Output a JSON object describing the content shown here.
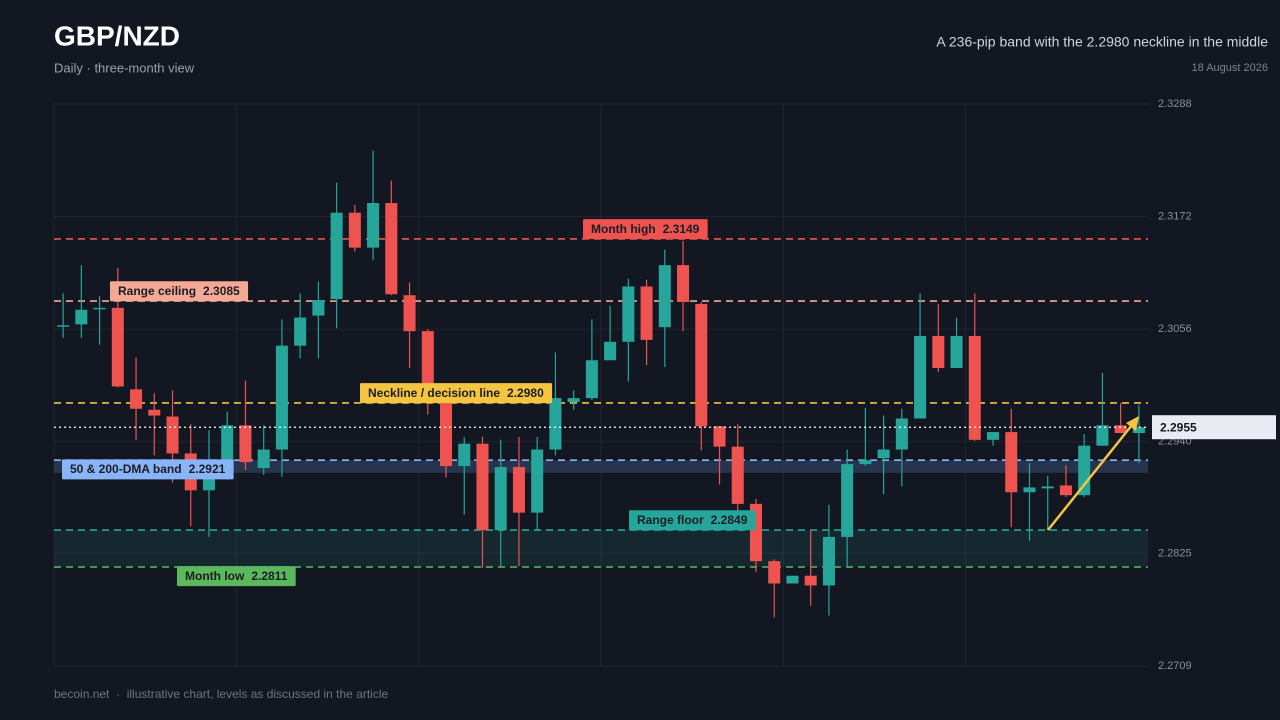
{
  "chart_data": {
    "type": "candlestick",
    "title": "GBP/NZD",
    "subtitle": "Daily · three-month view",
    "annotation": "A 236-pip band with the 2.2980 neckline in the middle",
    "date": "18 August 2026",
    "source": "becoin.net  ·  illustrative chart, levels as discussed in the article",
    "up_color": "#26a69a",
    "down_color": "#ef5350",
    "open": [
      2.3059,
      2.3061,
      2.3077,
      2.3078,
      2.2994,
      2.2973,
      2.2966,
      2.2928,
      2.289,
      2.2919,
      2.2957,
      2.2913,
      2.2932,
      2.3039,
      2.307,
      2.3087,
      2.3176,
      2.314,
      2.3186,
      2.3091,
      2.3054,
      2.2985,
      2.2915,
      2.2938,
      2.2849,
      2.2914,
      2.2867,
      2.2932,
      2.2981,
      2.2985,
      2.3024,
      2.3043,
      2.31,
      2.3058,
      2.3122,
      2.3082,
      2.2956,
      2.2935,
      2.2876,
      2.2817,
      2.2794,
      2.2802,
      2.2792,
      2.2842,
      2.2917,
      2.2923,
      2.2932,
      2.2964,
      2.3049,
      2.3016,
      2.3049,
      2.2942,
      2.295,
      2.2888,
      2.2892,
      2.2895,
      2.2885,
      2.2936,
      2.2957,
      2.2949
    ],
    "high": [
      2.3093,
      2.3122,
      2.309,
      2.3119,
      2.3027,
      2.299,
      2.2993,
      2.2958,
      2.2952,
      2.2971,
      2.3003,
      2.2957,
      2.3066,
      2.3093,
      2.3105,
      2.3207,
      2.3184,
      2.324,
      2.3209,
      2.3104,
      2.3056,
      2.2993,
      2.2945,
      2.2945,
      2.2942,
      2.2945,
      2.2945,
      2.3032,
      2.2993,
      2.3066,
      2.308,
      2.3108,
      2.3107,
      2.3138,
      2.3147,
      2.3084,
      2.2956,
      2.2958,
      2.2881,
      2.2819,
      2.2802,
      2.2849,
      2.2875,
      2.2932,
      2.2975,
      2.2967,
      2.2974,
      2.3093,
      2.3082,
      2.3068,
      2.3093,
      2.295,
      2.2974,
      2.2918,
      2.2905,
      2.2916,
      2.2948,
      2.3011,
      2.298,
      2.2978
    ],
    "low": [
      2.3047,
      2.3047,
      2.304,
      2.2996,
      2.2942,
      2.2926,
      2.2898,
      2.2853,
      2.2842,
      2.2901,
      2.2911,
      2.2906,
      2.2904,
      2.3026,
      2.3026,
      2.3057,
      2.3136,
      2.3127,
      2.3091,
      2.3016,
      2.2968,
      2.2903,
      2.2865,
      2.281,
      2.2812,
      2.2812,
      2.2849,
      2.2926,
      2.2973,
      2.2983,
      2.3024,
      2.3002,
      2.3019,
      2.3017,
      2.3054,
      2.2931,
      2.2896,
      2.2865,
      2.2806,
      2.2759,
      2.2794,
      2.2771,
      2.2761,
      2.2812,
      2.2915,
      2.2886,
      2.2894,
      2.2964,
      2.3012,
      2.3016,
      2.2941,
      2.2936,
      2.2852,
      2.2838,
      2.2849,
      2.2883,
      2.2883,
      2.2936,
      2.2949,
      2.2918
    ],
    "close": [
      2.306,
      2.3076,
      2.3078,
      2.2997,
      2.2974,
      2.2967,
      2.2928,
      2.289,
      2.2919,
      2.2957,
      2.2919,
      2.2932,
      2.3039,
      2.3068,
      2.3086,
      2.3176,
      2.314,
      2.3186,
      2.3092,
      2.3054,
      2.2985,
      2.2915,
      2.2938,
      2.2849,
      2.2914,
      2.2867,
      2.2932,
      2.2985,
      2.2985,
      2.3024,
      2.3043,
      2.31,
      2.3045,
      2.3122,
      2.3084,
      2.2956,
      2.2935,
      2.2876,
      2.2817,
      2.2794,
      2.2802,
      2.2792,
      2.2842,
      2.2917,
      2.2921,
      2.2932,
      2.2964,
      2.3049,
      2.3016,
      2.3049,
      2.2942,
      2.295,
      2.2888,
      2.2893,
      2.2894,
      2.2885,
      2.2936,
      2.2957,
      2.2949,
      2.2955
    ],
    "ylim": [
      2.2709,
      2.3288
    ],
    "yticks": [
      2.3288,
      2.3172,
      2.3056,
      {
        "value": 2.294,
        "label": "2.2940"
      },
      2.2825,
      2.2709
    ],
    "grid": true,
    "levels": [
      {
        "label": "Month high",
        "value": 2.3149,
        "color": "#ef5350"
      },
      {
        "label": "Range ceiling",
        "value": 2.3085,
        "color": "#f4a896"
      },
      {
        "label": "Neckline / decision line",
        "value": 2.298,
        "value_label": "2.2980",
        "color": "#f5c542"
      },
      {
        "label": "50 & 200-DMA band",
        "value": 2.2921,
        "band_low": 2.2908,
        "color": "#8ab4f8"
      },
      {
        "label": "Range floor",
        "value": 2.2849,
        "shade_to_next": true,
        "color": "#26a69a"
      },
      {
        "label": "Month low",
        "value": 2.2811,
        "color": "#5cb85c"
      }
    ],
    "last": {
      "value": 2.2955,
      "color": "#ffffff"
    }
  }
}
